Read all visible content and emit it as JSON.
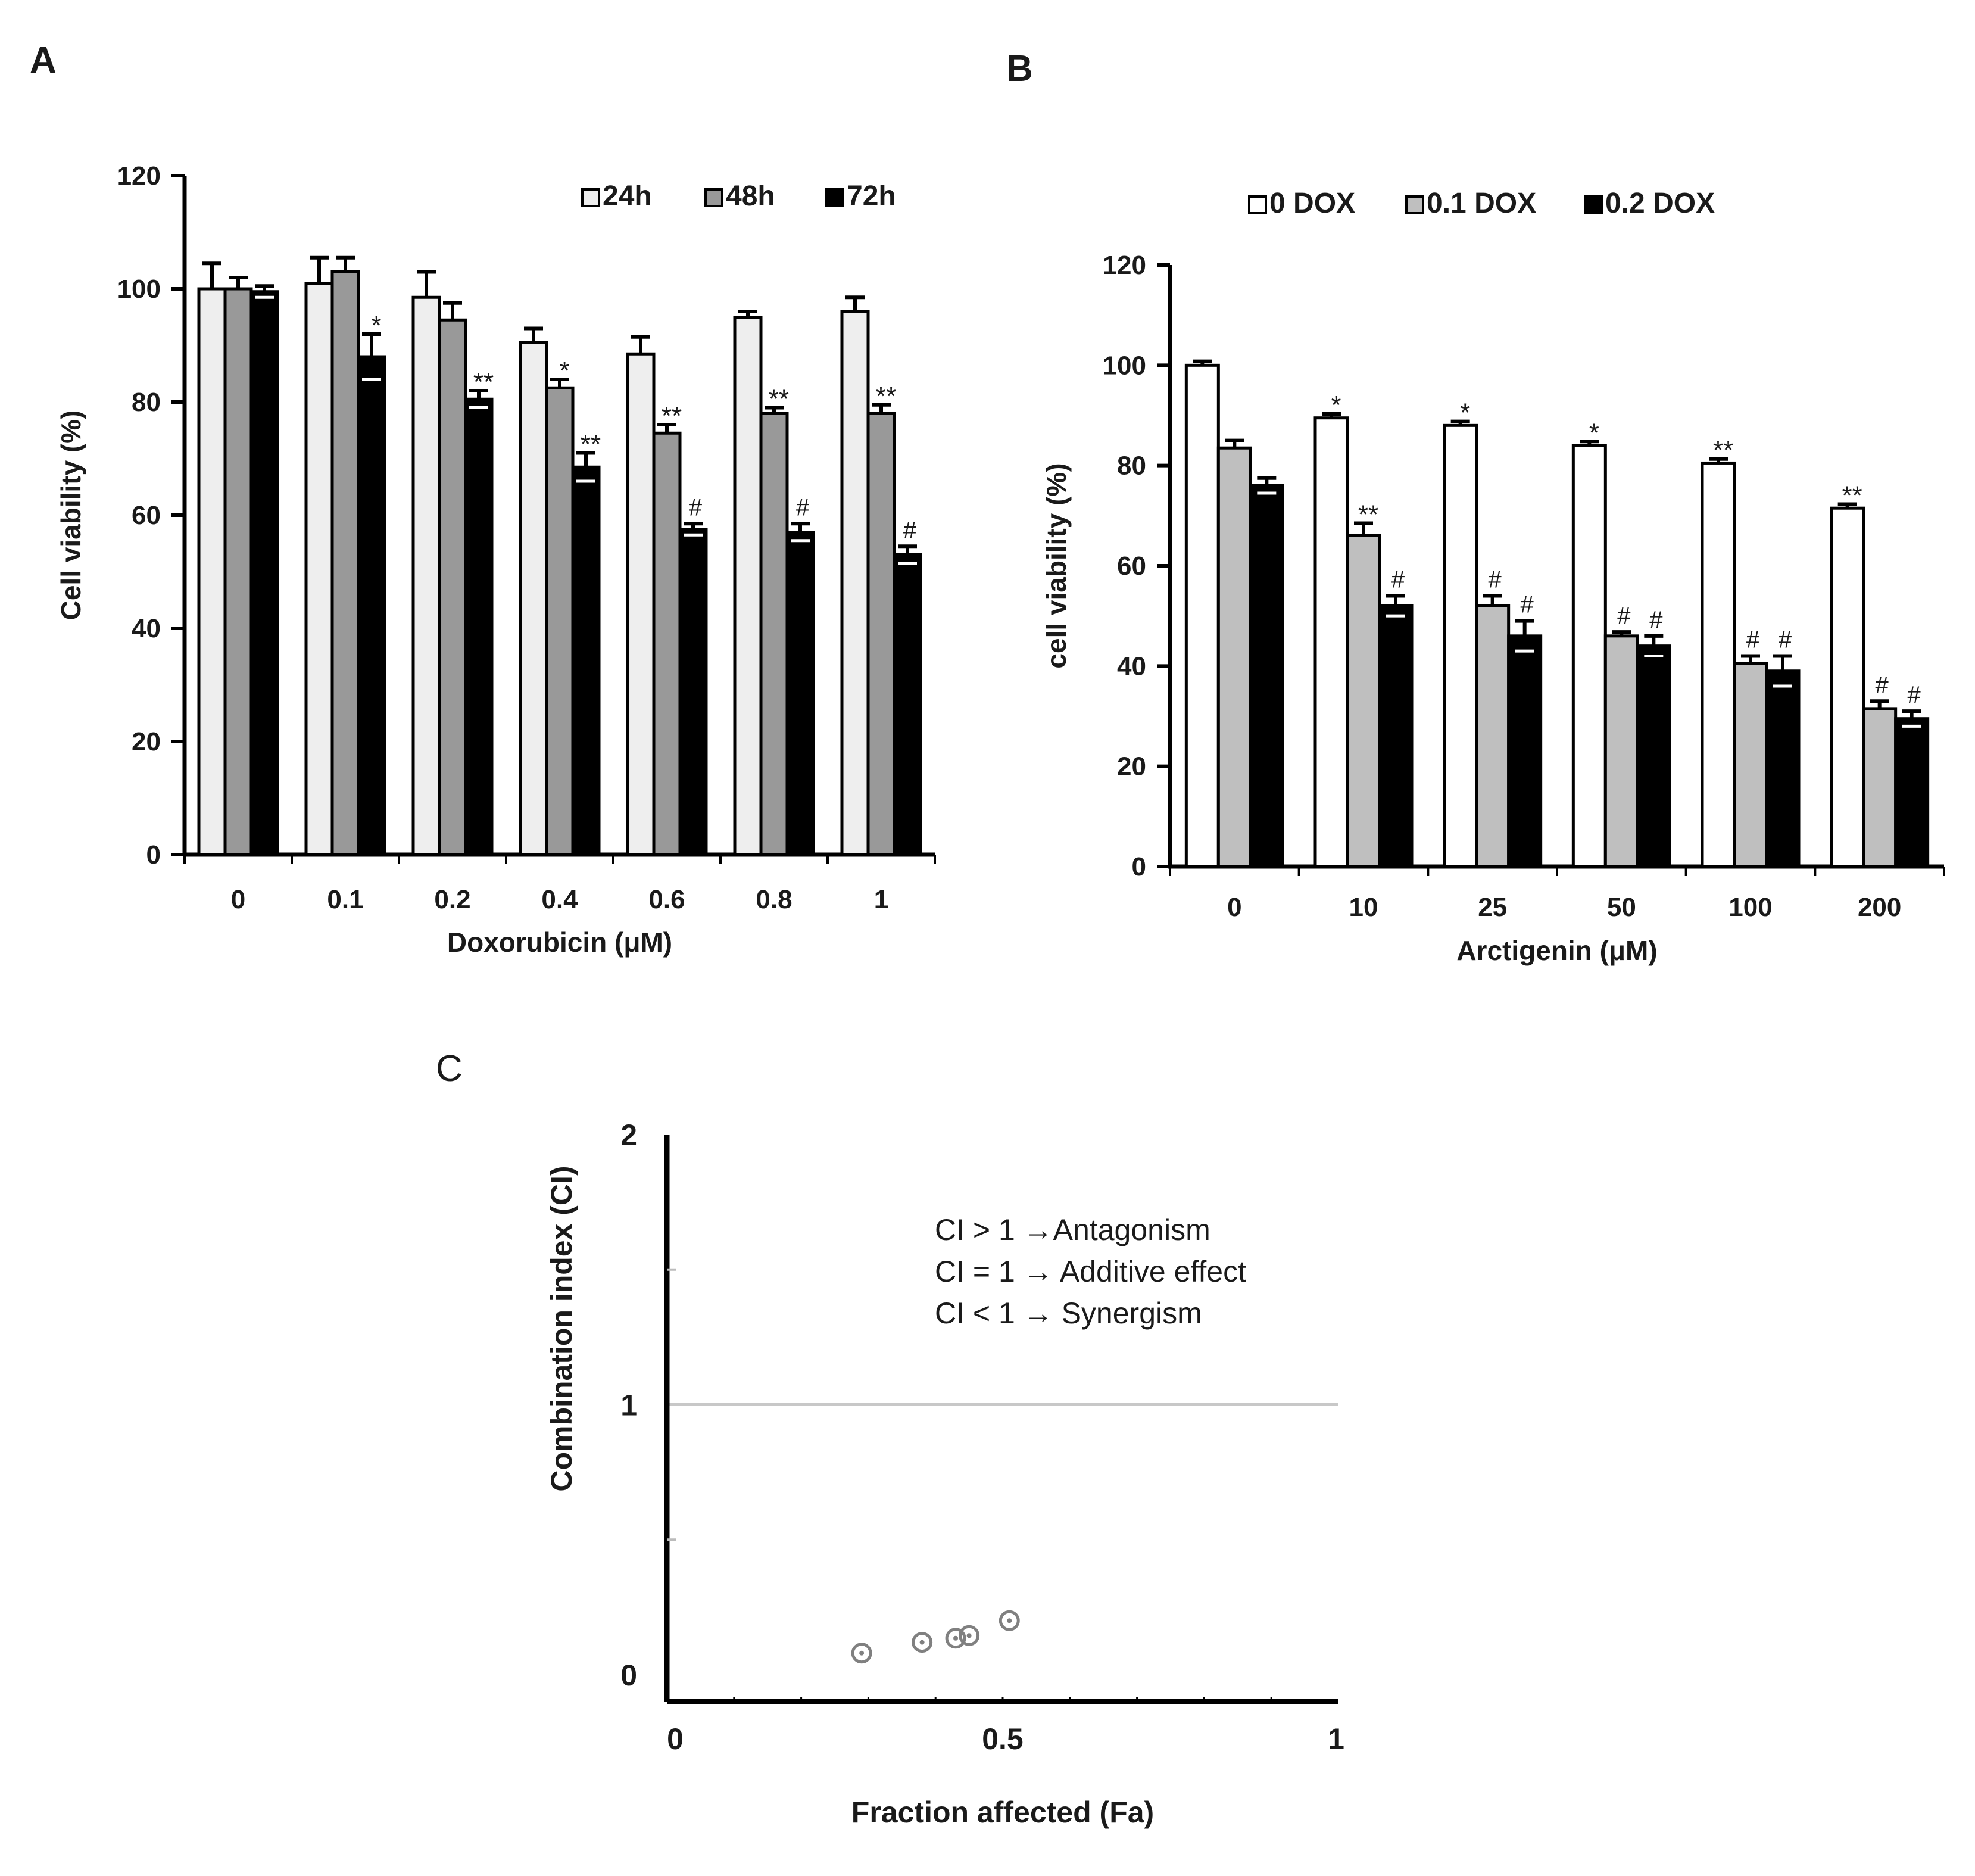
{
  "panel_labels": {
    "a": "A",
    "b": "B",
    "c": "C"
  },
  "chart_data": [
    {
      "type": "bar",
      "panel": "A",
      "title": "",
      "xlabel": "Doxorubicin (μM)",
      "ylabel": "Cell viability (%)",
      "ylim": [
        0,
        120
      ],
      "yticks": [
        0,
        20,
        40,
        60,
        80,
        100,
        120
      ],
      "categories": [
        "0",
        "0.1",
        "0.2",
        "0.4",
        "0.6",
        "0.8",
        "1"
      ],
      "legend_position": "top-right",
      "series": [
        {
          "name": "24h",
          "color": "#eeeeee",
          "values": [
            100,
            101,
            98.5,
            90.5,
            88.5,
            95,
            96
          ],
          "errors": [
            4.5,
            4.5,
            4.5,
            2.5,
            3,
            1,
            2.5
          ],
          "marks": [
            "",
            "",
            "",
            "",
            "",
            "",
            ""
          ]
        },
        {
          "name": "48h",
          "color": "#999999",
          "values": [
            100,
            103,
            94.5,
            82.5,
            74.5,
            78,
            78
          ],
          "errors": [
            2,
            2.5,
            3,
            1.5,
            1.5,
            1,
            1.5
          ],
          "marks": [
            "",
            "",
            "",
            "*",
            "**",
            "**",
            "**"
          ]
        },
        {
          "name": "72h",
          "color": "#000000",
          "values": [
            99.5,
            88,
            80.5,
            68.5,
            57.5,
            57,
            53
          ],
          "errors": [
            1,
            4,
            1.5,
            2.5,
            1,
            1.5,
            1.5
          ],
          "marks": [
            "",
            "*",
            "**",
            "**",
            "#",
            "#",
            "#"
          ]
        }
      ]
    },
    {
      "type": "bar",
      "panel": "B",
      "title": "",
      "xlabel": "Arctigenin (μM)",
      "ylabel": "cell viability (%)",
      "ylim": [
        0,
        120
      ],
      "yticks": [
        0,
        20,
        40,
        60,
        80,
        100,
        120
      ],
      "categories": [
        "0",
        "10",
        "25",
        "50",
        "100",
        "200"
      ],
      "legend_position": "top",
      "series": [
        {
          "name": "0 DOX",
          "color": "#ffffff",
          "values": [
            100,
            89.5,
            88,
            84,
            80.5,
            71.5
          ],
          "errors": [
            0.8,
            0.8,
            0.8,
            0.8,
            0.8,
            0.8
          ],
          "marks": [
            "",
            "*",
            "*",
            "*",
            "**",
            "**"
          ]
        },
        {
          "name": "0.1 DOX",
          "color": "#bfbfbf",
          "values": [
            83.5,
            66,
            52,
            46,
            40.5,
            31.5
          ],
          "errors": [
            1.5,
            2.5,
            2,
            0.8,
            1.5,
            1.5
          ],
          "marks": [
            "",
            "**",
            "#",
            "#",
            "#",
            "#"
          ]
        },
        {
          "name": "0.2 DOX",
          "color": "#000000",
          "values": [
            76,
            52,
            46,
            44,
            39,
            29.5
          ],
          "errors": [
            1.5,
            2,
            3,
            2,
            3,
            1.5
          ],
          "marks": [
            "",
            "#",
            "#",
            "#",
            "#",
            "#"
          ]
        }
      ]
    },
    {
      "type": "scatter",
      "panel": "C",
      "title": "",
      "xlabel": "Fraction affected (Fa)",
      "ylabel": "Combination index (CI)",
      "xlim": [
        0,
        1
      ],
      "ylim": [
        0,
        2
      ],
      "xticks": [
        0,
        0.5,
        1
      ],
      "yticks": [
        0,
        1,
        2
      ],
      "x": [
        0.29,
        0.38,
        0.43,
        0.45,
        0.51
      ],
      "y": [
        0.08,
        0.12,
        0.135,
        0.145,
        0.2
      ],
      "reference_line_y": 1,
      "annotations": [
        "CI > 1 →Antagonism",
        "CI = 1 → Additive effect",
        "CI < 1 → Synergism"
      ]
    }
  ]
}
